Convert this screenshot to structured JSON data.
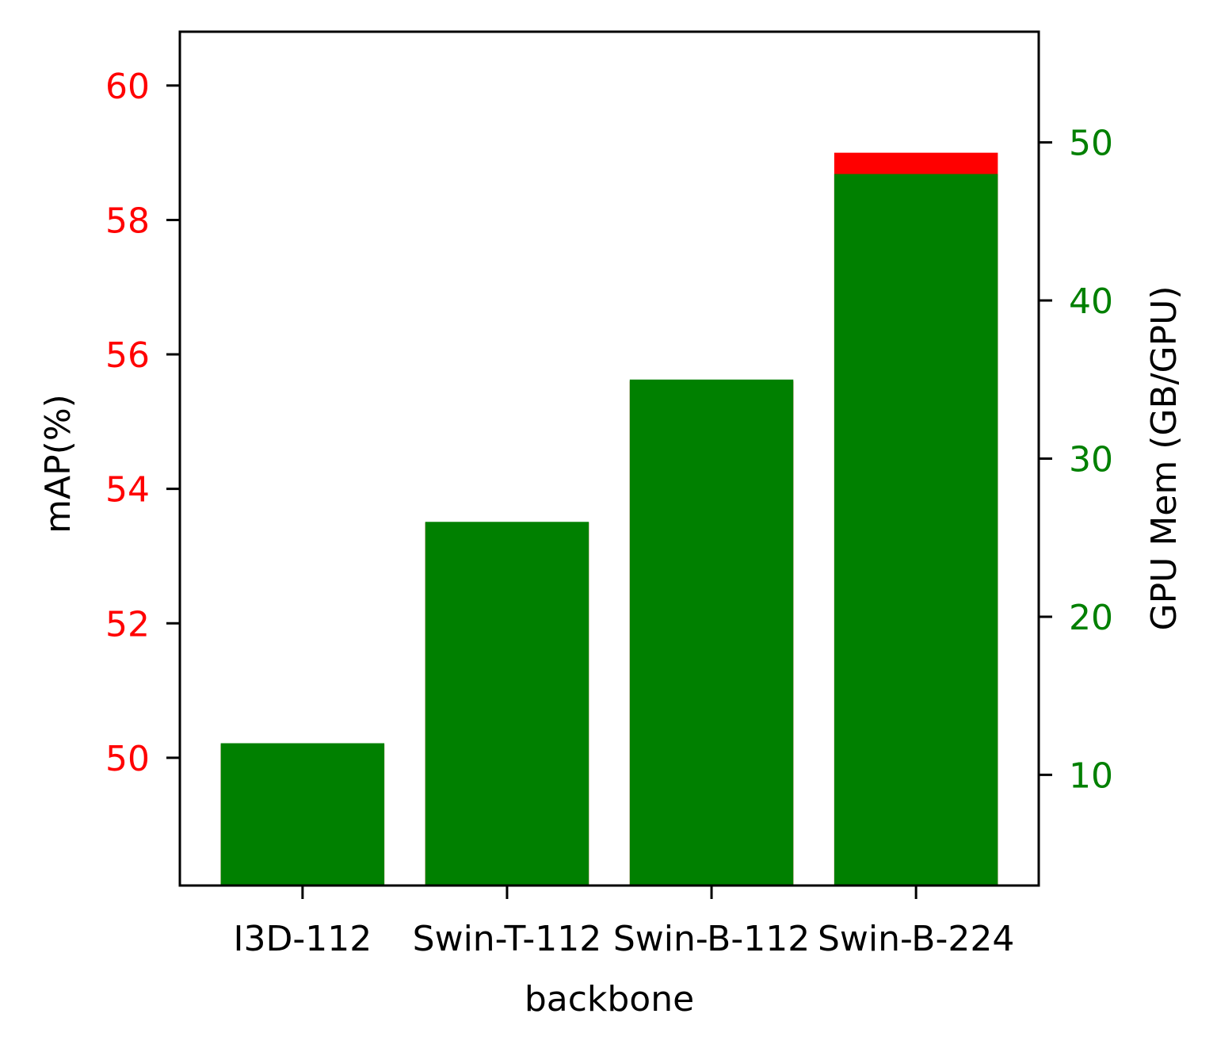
{
  "chart_data": {
    "type": "bar",
    "categories": [
      "I3D-112",
      "Swin-T-112",
      "Swin-B-112",
      "Swin-B-224"
    ],
    "series": [
      {
        "name": "mAP(%)",
        "axis": "left",
        "color": "#ff0000",
        "values": [
          50.2,
          53.5,
          55.6,
          59.0
        ]
      },
      {
        "name": "GPU Mem (GB/GPU)",
        "axis": "right",
        "color": "#008000",
        "values": [
          12.0,
          26.0,
          35.0,
          48.0
        ]
      }
    ],
    "xlabel": "backbone",
    "ylabel_left": "mAP(%)",
    "ylabel_right": "GPU Mem (GB/GPU)",
    "ylim_left": [
      48.1,
      60.8
    ],
    "ylim_right": [
      3.0,
      57.0
    ],
    "yticks_left": [
      50,
      52,
      54,
      56,
      58,
      60
    ],
    "yticks_right": [
      10,
      20,
      30,
      40,
      50
    ],
    "left_tick_color": "#ff0000",
    "right_tick_color": "#008000",
    "grid": false
  }
}
